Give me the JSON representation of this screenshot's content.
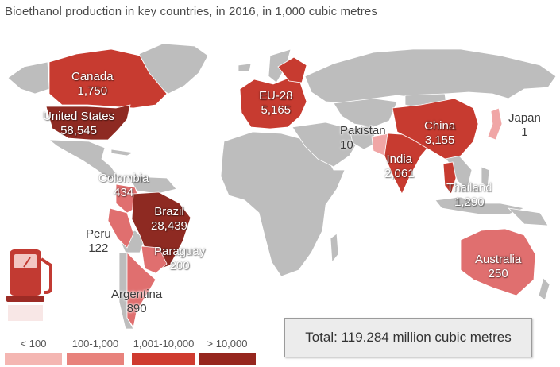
{
  "title": "Bioethanol production in key countries, in 2016, in 1,000 cubic metres",
  "colors": {
    "land": "#bdbdbd",
    "tier1": "#f0a6a6",
    "tier2": "#e06f6f",
    "tier3": "#c73b30",
    "tier4": "#8e2a22"
  },
  "legend": [
    {
      "label": "< 100",
      "color": "#f4b6b2"
    },
    {
      "label": "100-1,000",
      "color": "#e8827c"
    },
    {
      "label": "1,001-10,000",
      "color": "#cf3b2f"
    },
    {
      "label": "> 10,000",
      "color": "#96261e"
    }
  ],
  "countries": [
    {
      "name": "Canada",
      "value": "1,750",
      "tier": 3
    },
    {
      "name": "United States",
      "value": "58,545",
      "tier": 4
    },
    {
      "name": "EU-28",
      "value": "5,165",
      "tier": 3
    },
    {
      "name": "Pakistan",
      "value": "10",
      "tier": 1
    },
    {
      "name": "China",
      "value": "3,155",
      "tier": 3
    },
    {
      "name": "Japan",
      "value": "1",
      "tier": 1
    },
    {
      "name": "India",
      "value": "2,061",
      "tier": 3
    },
    {
      "name": "Thailand",
      "value": "1,290",
      "tier": 3
    },
    {
      "name": "Colombia",
      "value": "434",
      "tier": 2
    },
    {
      "name": "Brazil",
      "value": "28,439",
      "tier": 4
    },
    {
      "name": "Peru",
      "value": "122",
      "tier": 2
    },
    {
      "name": "Paraguay",
      "value": "200",
      "tier": 2
    },
    {
      "name": "Argentina",
      "value": "890",
      "tier": 2
    },
    {
      "name": "Australia",
      "value": "250",
      "tier": 2
    }
  ],
  "total": "Total: 119.284 million cubic metres",
  "icon": "fuel-pump-icon"
}
